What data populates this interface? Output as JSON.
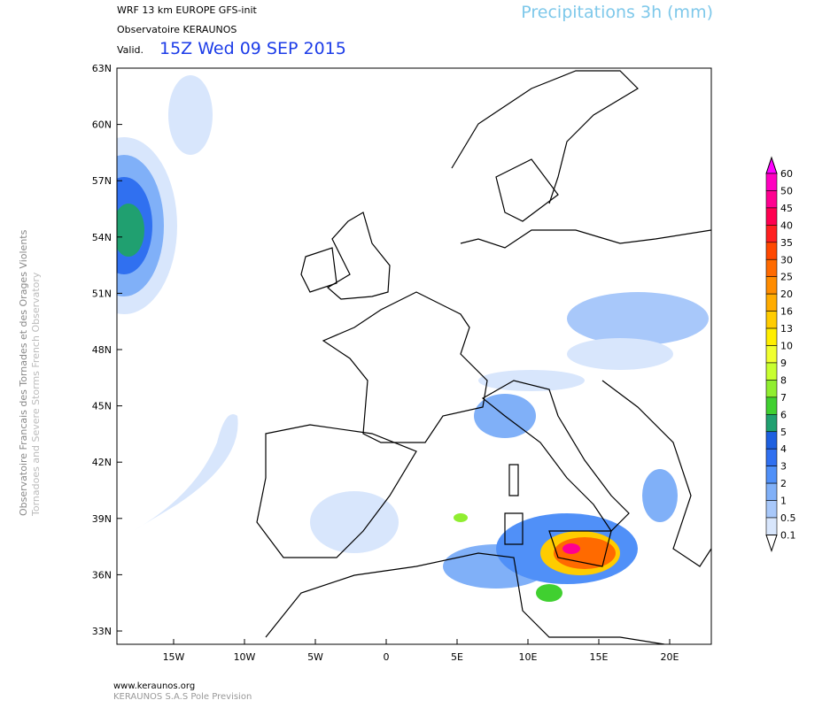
{
  "header": {
    "model": "WRF 13 km EUROPE  GFS-init",
    "organization": "Observatoire KERAUNOS",
    "valid_prefix": "Valid.",
    "valid_time": "15Z Wed 09 SEP 2015",
    "product": "Precipitations 3h (mm)"
  },
  "axes": {
    "latitudes": [
      "63N",
      "60N",
      "57N",
      "54N",
      "51N",
      "48N",
      "45N",
      "42N",
      "39N",
      "36N",
      "33N"
    ],
    "longitudes": [
      "15W",
      "10W",
      "5W",
      "0",
      "5E",
      "10E",
      "15E",
      "20E"
    ]
  },
  "legend": {
    "labels": [
      "60",
      "50",
      "45",
      "40",
      "35",
      "30",
      "25",
      "20",
      "16",
      "13",
      "10",
      "9",
      "8",
      "7",
      "6",
      "5",
      "4",
      "3",
      "2",
      "1",
      "0.5",
      "0.1"
    ],
    "colors": [
      "#ff00ff",
      "#ff00c0",
      "#ff0090",
      "#ff0050",
      "#ff2020",
      "#ff4800",
      "#ff6a00",
      "#ff8c00",
      "#ffac00",
      "#ffcc00",
      "#ffee00",
      "#f0ff30",
      "#c8ff30",
      "#90ee30",
      "#40d030",
      "#20a070",
      "#1e60e0",
      "#3070f0",
      "#5090f8",
      "#80b0f8",
      "#a8c8fa",
      "#d8e6fc",
      "#ffffff"
    ]
  },
  "side_text": [
    "Observatoire Francais des Tornades et des Orages Violents",
    "Tornadoes and Severe Storms French Observatory"
  ],
  "footer": [
    "www.keraunos.org",
    "KERAUNOS S.A.S Pole Prevision"
  ]
}
